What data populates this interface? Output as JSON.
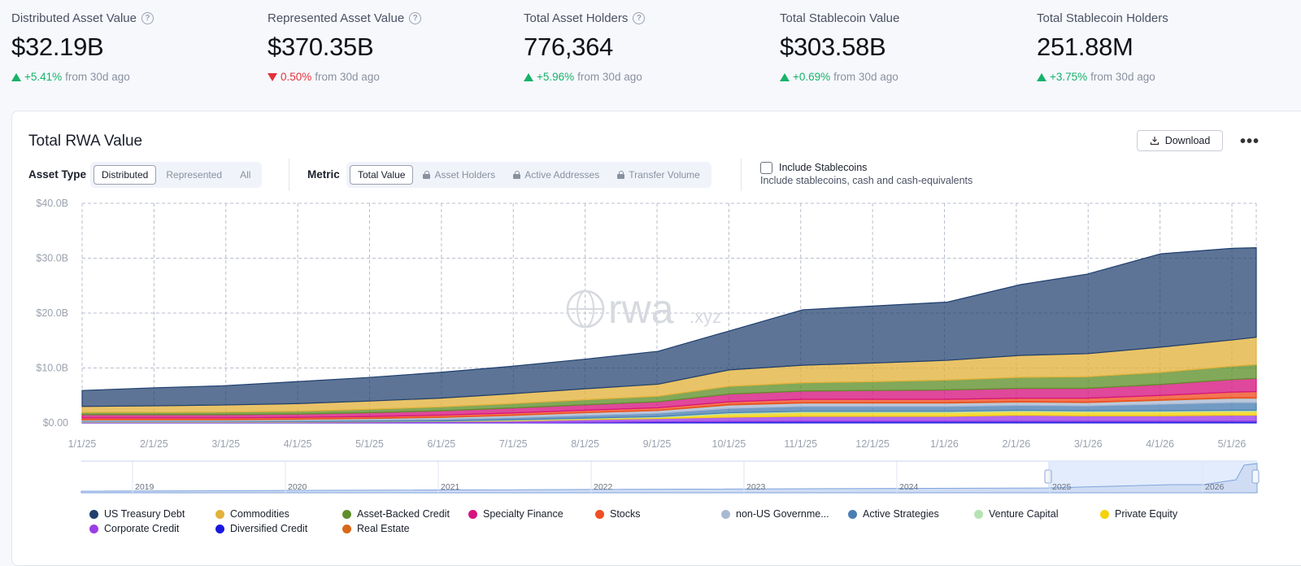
{
  "stats": [
    {
      "label": "Distributed Asset Value",
      "help": true,
      "value": "$32.19B",
      "direction": "up",
      "change": "+5.41%",
      "suffix": "from 30d ago"
    },
    {
      "label": "Represented Asset Value",
      "help": true,
      "value": "$370.35B",
      "direction": "down",
      "change": "0.50%",
      "suffix": "from 30d ago"
    },
    {
      "label": "Total Asset Holders",
      "help": true,
      "value": "776,364",
      "direction": "up",
      "change": "+5.96%",
      "suffix": "from 30d ago"
    },
    {
      "label": "Total Stablecoin Value",
      "help": false,
      "value": "$303.58B",
      "direction": "up",
      "change": "+0.69%",
      "suffix": "from 30d ago"
    },
    {
      "label": "Total Stablecoin Holders",
      "help": false,
      "value": "251.88M",
      "direction": "up",
      "change": "+3.75%",
      "suffix": "from 30d ago"
    }
  ],
  "card": {
    "title": "Total RWA Value",
    "download_label": "Download",
    "asset_type_label": "Asset Type",
    "asset_type_options": [
      "Distributed",
      "Represented",
      "All"
    ],
    "asset_type_selected": "Distributed",
    "metric_label": "Metric",
    "metric_options": [
      {
        "label": "Total Value",
        "locked": false
      },
      {
        "label": "Asset Holders",
        "locked": true
      },
      {
        "label": "Active Addresses",
        "locked": true
      },
      {
        "label": "Transfer Volume",
        "locked": true
      }
    ],
    "metric_selected": "Total Value",
    "stablecoins_label": "Include Stablecoins",
    "stablecoins_checked": false,
    "stablecoins_sub": "Include stablecoins, cash and cash-equivalents"
  },
  "watermark": {
    "main": "rwa",
    "suffix": ".xyz"
  },
  "colors": {
    "US Treasury Debt": "#1f3f6e",
    "Commodities": "#e3b23c",
    "Asset-Backed Credit": "#5f8f2a",
    "Specialty Finance": "#d6147f",
    "Stocks": "#f04e23",
    "non-US Government Debt": "#a9b9d3",
    "Active Strategies": "#4a7fb3",
    "Venture Capital": "#b5e4b3",
    "Private Equity": "#f5d20c",
    "Corporate Credit": "#9b3ee6",
    "Diversified Credit": "#1a18e0",
    "Real Estate": "#d9681a"
  },
  "legend": [
    "US Treasury Debt",
    "Commodities",
    "Asset-Backed Credit",
    "Specialty Finance",
    "Stocks",
    "non-US Governme...",
    "Active Strategies",
    "Venture Capital",
    "Private Equity",
    "Corporate Credit",
    "Diversified Credit",
    "Real Estate"
  ],
  "navigator": {
    "years": [
      "2019",
      "2020",
      "2021",
      "2022",
      "2023",
      "2024",
      "2025",
      "2026"
    ]
  },
  "chart_data": {
    "type": "area",
    "stacked": true,
    "title": "Total RWA Value",
    "x_ticks": [
      "1/1/25",
      "2/1/25",
      "3/1/25",
      "4/1/25",
      "5/1/25",
      "6/1/25",
      "7/1/25",
      "8/1/25",
      "9/1/25",
      "10/1/25",
      "11/1/25",
      "12/1/25",
      "1/1/26",
      "2/1/26",
      "3/1/26",
      "4/1/26",
      "5/1/26"
    ],
    "y_ticks": [
      "$0.00",
      "$10.0B",
      "$20.0B",
      "$30.0B",
      "$40.0B"
    ],
    "ylim": [
      0,
      40
    ],
    "y_unit": "$B",
    "grid": true,
    "x": [
      "2025-01-01",
      "2025-02-01",
      "2025-03-01",
      "2025-04-01",
      "2025-05-01",
      "2025-06-01",
      "2025-07-01",
      "2025-08-01",
      "2025-09-01",
      "2025-10-01",
      "2025-11-01",
      "2025-12-01",
      "2026-01-01",
      "2026-02-01",
      "2026-03-01",
      "2026-04-01",
      "2026-05-01",
      "2026-05-18"
    ],
    "series": [
      {
        "name": "Diversified Credit",
        "values": [
          0.05,
          0.05,
          0.05,
          0.05,
          0.05,
          0.05,
          0.05,
          0.1,
          0.2,
          0.25,
          0.3,
          0.3,
          0.3,
          0.3,
          0.3,
          0.3,
          0.3,
          0.3
        ]
      },
      {
        "name": "Corporate Credit",
        "values": [
          0.1,
          0.1,
          0.1,
          0.1,
          0.15,
          0.2,
          0.3,
          0.5,
          0.6,
          0.8,
          0.9,
          0.9,
          0.9,
          1.1,
          1.0,
          1.0,
          1.1,
          1.1
        ]
      },
      {
        "name": "Private Equity",
        "values": [
          0.05,
          0.05,
          0.05,
          0.05,
          0.05,
          0.05,
          0.1,
          0.15,
          0.2,
          0.6,
          0.7,
          0.7,
          0.7,
          0.7,
          0.7,
          0.7,
          0.7,
          0.7
        ]
      },
      {
        "name": "Venture Capital",
        "values": [
          0.05,
          0.05,
          0.05,
          0.05,
          0.05,
          0.05,
          0.1,
          0.1,
          0.15,
          0.2,
          0.2,
          0.2,
          0.2,
          0.2,
          0.2,
          0.2,
          0.2,
          0.2
        ]
      },
      {
        "name": "Active Strategies",
        "values": [
          0.1,
          0.1,
          0.1,
          0.15,
          0.2,
          0.3,
          0.4,
          0.5,
          0.6,
          0.8,
          0.9,
          0.9,
          0.9,
          0.9,
          0.9,
          1.2,
          1.4,
          1.4
        ]
      },
      {
        "name": "non-US Government Debt",
        "values": [
          0.2,
          0.2,
          0.2,
          0.25,
          0.3,
          0.35,
          0.4,
          0.5,
          0.5,
          0.6,
          0.6,
          0.6,
          0.6,
          0.6,
          0.6,
          0.7,
          0.8,
          0.8
        ]
      },
      {
        "name": "Real Estate",
        "values": [
          0.05,
          0.05,
          0.05,
          0.05,
          0.05,
          0.05,
          0.05,
          0.05,
          0.05,
          0.1,
          0.1,
          0.1,
          0.1,
          0.1,
          0.1,
          0.1,
          0.1,
          0.1
        ]
      },
      {
        "name": "Stocks",
        "values": [
          0.3,
          0.3,
          0.3,
          0.3,
          0.3,
          0.35,
          0.4,
          0.4,
          0.45,
          0.5,
          0.6,
          0.6,
          0.6,
          0.6,
          0.7,
          0.8,
          1.0,
          1.1
        ]
      },
      {
        "name": "Specialty Finance",
        "values": [
          0.6,
          0.6,
          0.6,
          0.6,
          0.7,
          0.8,
          0.9,
          1.0,
          1.1,
          1.4,
          1.5,
          1.6,
          1.7,
          1.8,
          1.8,
          2.0,
          2.3,
          2.4
        ]
      },
      {
        "name": "Asset-Backed Credit",
        "values": [
          0.4,
          0.4,
          0.45,
          0.5,
          0.6,
          0.7,
          0.8,
          0.9,
          1.0,
          1.4,
          1.5,
          1.6,
          1.8,
          2.0,
          2.1,
          2.2,
          2.4,
          2.5
        ]
      },
      {
        "name": "Commodities",
        "values": [
          1.1,
          1.2,
          1.3,
          1.4,
          1.5,
          1.6,
          1.8,
          2.0,
          2.2,
          3.0,
          3.2,
          3.4,
          3.6,
          4.0,
          4.2,
          4.6,
          4.8,
          5.0
        ]
      },
      {
        "name": "US Treasury Debt",
        "values": [
          2.9,
          3.3,
          3.5,
          4.0,
          4.3,
          4.7,
          5.0,
          5.4,
          6.0,
          7.1,
          10.1,
          10.4,
          10.6,
          12.9,
          14.5,
          17.0,
          16.7,
          16.3
        ]
      }
    ]
  }
}
